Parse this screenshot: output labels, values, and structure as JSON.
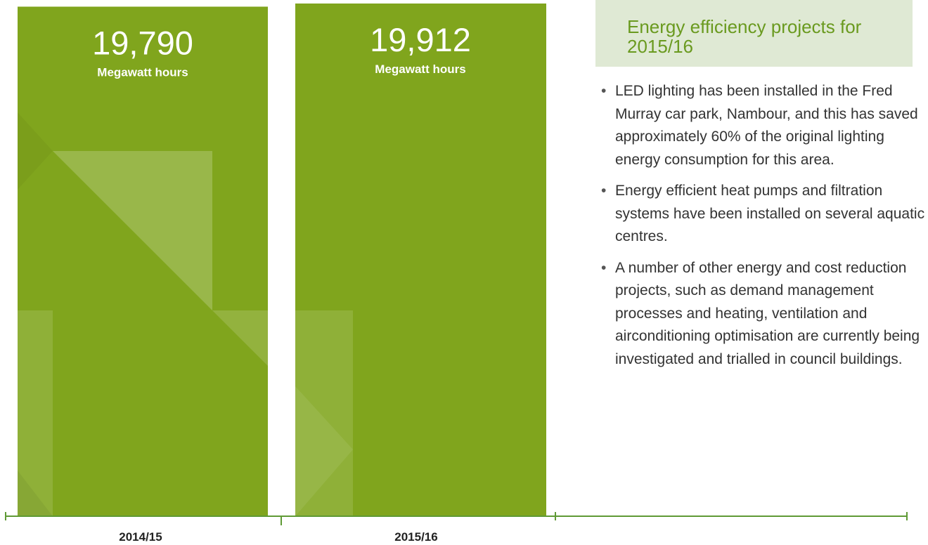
{
  "chart_data": {
    "type": "bar",
    "categories": [
      "2014/15",
      "2015/16"
    ],
    "values": [
      19790,
      19912
    ],
    "value_labels": [
      "19,790",
      "19,912"
    ],
    "value_unit": "Megawatt hours",
    "color": "#80a51d"
  },
  "panel": {
    "title": "Energy efficiency projects for 2015/16",
    "bullets": [
      "LED lighting has been installed in the Fred Murray car park, Nambour, and this has saved approximately 60% of the original lighting energy consumption for this area.",
      "Energy efficient heat pumps and filtration systems have been installed on several aquatic centres.",
      "A number of other energy and cost reduction projects, such as demand management processes and heating, ventilation and airconditioning optimisation are currently being investigated and trialled in council buildings."
    ]
  }
}
